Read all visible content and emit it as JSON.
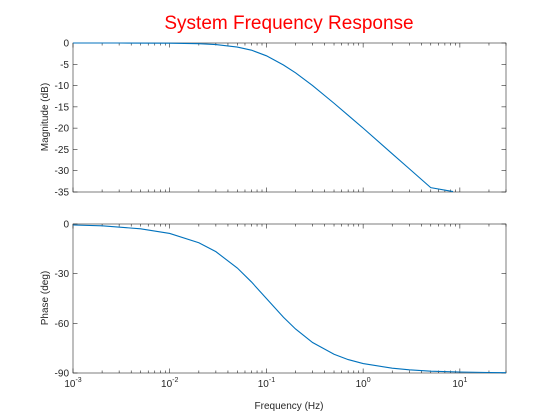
{
  "colors": {
    "title": "#ff0000",
    "series": "#0072bd",
    "axes": "#262626",
    "background": "#ffffff"
  },
  "chart_data": {
    "type": "line",
    "title": "System Frequency Response",
    "subplots": [
      {
        "name": "magnitude",
        "ylabel": "Magnitude (dB)",
        "xscale": "log",
        "xlim": [
          0.001,
          30
        ],
        "ylim": [
          -35,
          0
        ],
        "yticks": [
          0,
          -5,
          -10,
          -15,
          -20,
          -25,
          -30,
          -35
        ],
        "ytick_labels": [
          "0",
          "-5",
          "-10",
          "-15",
          "-20",
          "-25",
          "-30",
          "-35"
        ],
        "grid": false,
        "series": [
          {
            "x": [
              0.001,
              0.003,
              0.01,
              0.02,
              0.03,
              0.05,
              0.07,
              0.1,
              0.15,
              0.2,
              0.3,
              0.5,
              0.7,
              1,
              2,
              3,
              5,
              8.5
            ],
            "values": [
              0,
              0,
              -0.04,
              -0.17,
              -0.37,
              -0.96,
              -1.68,
              -3.01,
              -5.17,
              -7.0,
              -10.0,
              -14.15,
              -16.99,
              -20.0,
              -26.03,
              -29.54,
              -33.98,
              -34.9
            ]
          }
        ]
      },
      {
        "name": "phase",
        "ylabel": "Phase (deg)",
        "xlabel": "Frequency (Hz)",
        "xscale": "log",
        "xlim": [
          0.001,
          30
        ],
        "ylim": [
          -90,
          0
        ],
        "yticks": [
          0,
          -30,
          -60,
          -90
        ],
        "ytick_labels": [
          "0",
          "-30",
          "-60",
          "-90"
        ],
        "xticks": [
          0.001,
          0.01,
          0.1,
          1,
          10
        ],
        "xtick_labels": [
          {
            "base": "10",
            "exp": "-3"
          },
          {
            "base": "10",
            "exp": "-2"
          },
          {
            "base": "10",
            "exp": "-1"
          },
          {
            "base": "10",
            "exp": "0"
          },
          {
            "base": "10",
            "exp": "1"
          }
        ],
        "grid": false,
        "series": [
          {
            "x": [
              0.001,
              0.002,
              0.005,
              0.01,
              0.02,
              0.03,
              0.05,
              0.07,
              0.1,
              0.15,
              0.2,
              0.3,
              0.5,
              0.7,
              1,
              2,
              3,
              5,
              10,
              20,
              30
            ],
            "values": [
              -0.6,
              -1.1,
              -2.9,
              -5.7,
              -11.3,
              -16.7,
              -26.6,
              -35.0,
              -45.0,
              -56.3,
              -63.4,
              -71.6,
              -78.7,
              -81.9,
              -84.3,
              -87.1,
              -88.1,
              -88.9,
              -89.4,
              -89.7,
              -89.8
            ]
          }
        ]
      }
    ]
  }
}
